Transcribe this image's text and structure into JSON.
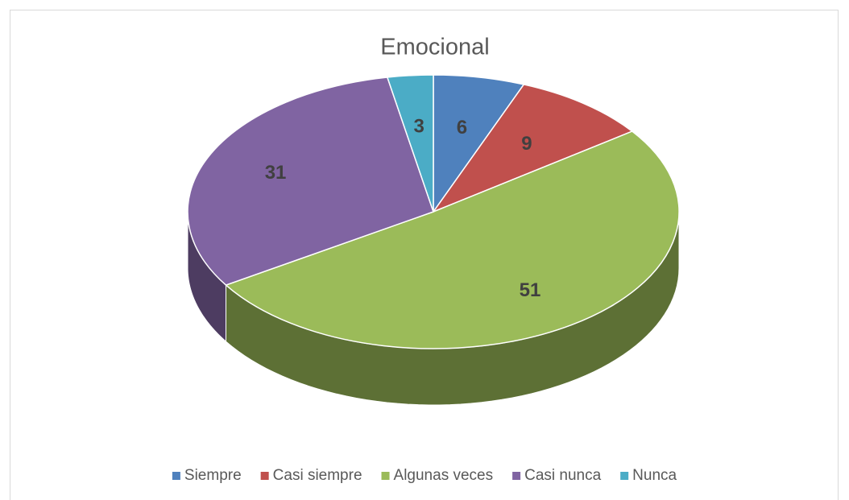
{
  "chart_data": {
    "type": "pie",
    "title": "Emocional",
    "categories": [
      "Siempre",
      "Casi siempre",
      "Algunas veces",
      "Casi nunca",
      "Nunca"
    ],
    "values": [
      6,
      9,
      51,
      31,
      3
    ],
    "colors": [
      "#4f81bd",
      "#c0504d",
      "#9bbb59",
      "#8064a2",
      "#4bacc6"
    ],
    "legend": "bottom"
  }
}
